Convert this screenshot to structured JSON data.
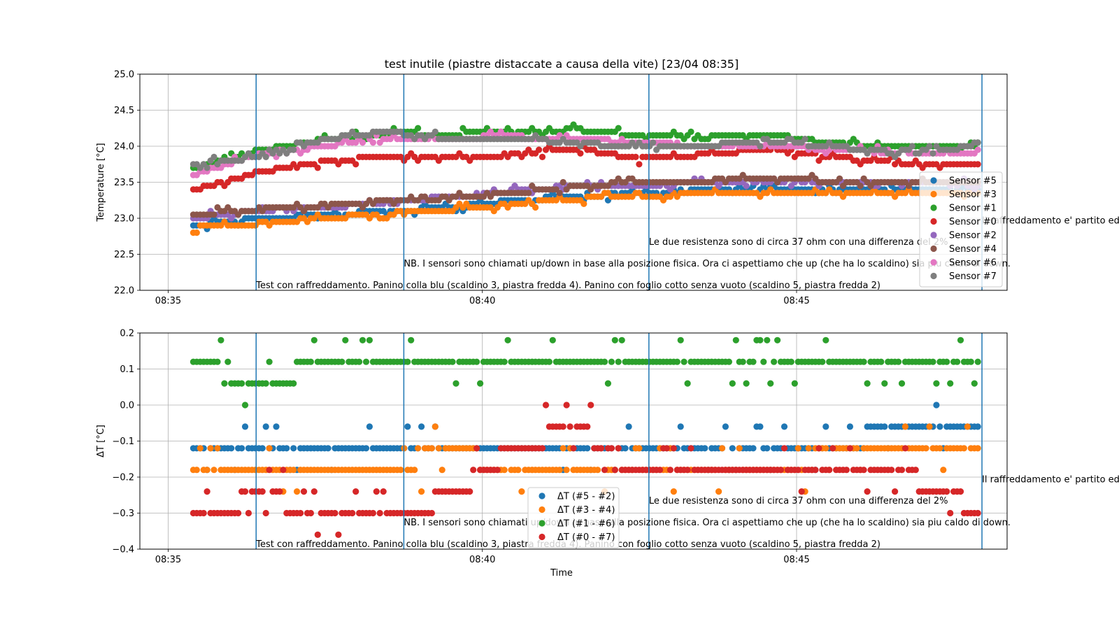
{
  "figure": {
    "title": "test inutile (piastre distaccate a causa della vite) [23/04 08:35]",
    "xlabel": "Time"
  },
  "colors": {
    "Sensor #5": "#1f77b4",
    "Sensor #3": "#ff7f0e",
    "Sensor #1": "#2ca02c",
    "Sensor #0": "#d62728",
    "Sensor #2": "#9467bd",
    "Sensor #4": "#8c564b",
    "Sensor #6": "#e377c2",
    "Sensor #7": "#7f7f7f",
    "vline": "#1f77b4",
    "grid": "#b0b0b0"
  },
  "chart_data": [
    {
      "type": "scatter",
      "ylabel": "Temperature [°C]",
      "ylim": [
        22.0,
        25.0
      ],
      "yticks": [
        "22.0",
        "22.5",
        "23.0",
        "23.5",
        "24.0",
        "24.5",
        "25.0"
      ],
      "xlim_min": [
        -0.5,
        13.3
      ],
      "xticks": [
        {
          "t": 0,
          "label": "08:35"
        },
        {
          "t": 5,
          "label": "08:40"
        },
        {
          "t": 10,
          "label": "08:45"
        }
      ],
      "grid": true,
      "legend": "right, partially outside axes",
      "series": [
        {
          "name": "Sensor #5",
          "t": [
            0.4,
            1.5,
            2.5,
            3.5,
            4.5,
            5.5,
            6.5,
            7.5,
            8.5,
            9.5,
            10.5,
            11.5,
            12.5,
            12.9
          ],
          "values": [
            22.9,
            23.0,
            23.05,
            23.1,
            23.15,
            23.25,
            23.3,
            23.35,
            23.4,
            23.4,
            23.4,
            23.42,
            23.42,
            23.42
          ]
        },
        {
          "name": "Sensor #3",
          "t": [
            0.4,
            1.5,
            2.5,
            3.5,
            4.5,
            5.5,
            6.5,
            7.5,
            8.5,
            9.5,
            10.5,
            11.5,
            12.5,
            12.9
          ],
          "values": [
            22.87,
            22.93,
            23.0,
            23.07,
            23.12,
            23.2,
            23.27,
            23.3,
            23.35,
            23.35,
            23.33,
            23.33,
            23.35,
            23.37
          ]
        },
        {
          "name": "Sensor #1",
          "t": [
            0.4,
            1.5,
            2.5,
            3.5,
            4.5,
            5.5,
            6.5,
            7.5,
            8.5,
            9.5,
            10.5,
            11.5,
            12.5,
            12.9
          ],
          "values": [
            23.7,
            23.95,
            24.1,
            24.18,
            24.17,
            24.2,
            24.23,
            24.15,
            24.12,
            24.15,
            24.05,
            24.0,
            23.98,
            24.05
          ]
        },
        {
          "name": "Sensor #0",
          "t": [
            0.4,
            1.5,
            2.5,
            3.5,
            4.5,
            5.5,
            6.5,
            7.5,
            8.5,
            9.5,
            10.5,
            11.5,
            12.5,
            12.9
          ],
          "values": [
            23.4,
            23.65,
            23.78,
            23.87,
            23.85,
            23.88,
            23.97,
            23.82,
            23.88,
            23.96,
            23.85,
            23.78,
            23.75,
            23.75
          ]
        },
        {
          "name": "Sensor #2",
          "t": [
            0.4,
            1.5,
            2.5,
            3.5,
            4.5,
            5.5,
            6.5,
            7.5,
            8.5,
            9.5,
            10.5,
            11.5,
            12.5,
            12.9
          ],
          "values": [
            23.0,
            23.12,
            23.15,
            23.22,
            23.3,
            23.38,
            23.45,
            23.45,
            23.5,
            23.52,
            23.5,
            23.48,
            23.48,
            23.47
          ]
        },
        {
          "name": "Sensor #4",
          "t": [
            0.4,
            1.5,
            2.5,
            3.5,
            4.5,
            5.5,
            6.5,
            7.5,
            8.5,
            9.5,
            10.5,
            11.5,
            12.5,
            12.9
          ],
          "values": [
            23.05,
            23.13,
            23.18,
            23.25,
            23.28,
            23.35,
            23.45,
            23.5,
            23.52,
            23.55,
            23.52,
            23.5,
            23.5,
            23.5
          ]
        },
        {
          "name": "Sensor #6",
          "t": [
            0.4,
            1.5,
            2.5,
            3.5,
            4.5,
            5.5,
            6.5,
            7.5,
            8.5,
            9.5,
            10.5,
            11.5,
            12.5,
            12.9
          ],
          "values": [
            23.6,
            23.9,
            24.0,
            24.12,
            24.12,
            24.13,
            24.1,
            24.05,
            24.0,
            24.02,
            23.95,
            23.92,
            23.9,
            23.93
          ]
        },
        {
          "name": "Sensor #7",
          "t": [
            0.4,
            1.5,
            2.5,
            3.5,
            4.5,
            5.5,
            6.5,
            7.5,
            8.5,
            9.5,
            10.5,
            11.5,
            12.5,
            12.9
          ],
          "values": [
            23.75,
            23.85,
            24.1,
            24.2,
            24.1,
            24.1,
            24.05,
            23.98,
            24.0,
            24.08,
            24.0,
            23.92,
            23.95,
            24.05
          ]
        }
      ],
      "vlines_t": [
        1.4,
        3.75,
        7.65,
        12.95
      ],
      "annotations": [
        {
          "t": 1.4,
          "y": 22.0,
          "text": "Test con raffreddamento. Panino colla blu (scaldino 3, piastra fredda 4). Panino con foglio cotto senza vuoto (scaldino 5, piastra fredda 2)"
        },
        {
          "t": 3.75,
          "y": 22.3,
          "text": "NB. I sensori sono chiamati up/down in base alla posizione fisica. Ora ci aspettiamo che up (che ha lo scaldino) sia piu caldo di down."
        },
        {
          "t": 7.65,
          "y": 22.6,
          "text": "Le due resistenza sono di circa 37 ohm con una differenza del 2%"
        },
        {
          "t": 12.95,
          "y": 22.9,
          "text": "Il raffreddamento e' partito ed e"
        }
      ]
    },
    {
      "type": "scatter",
      "ylabel": "ΔT [°C]",
      "ylim": [
        -0.4,
        0.2
      ],
      "yticks": [
        "−0.4",
        "−0.3",
        "−0.2",
        "−0.1",
        "0.0",
        "0.1",
        "0.2"
      ],
      "xticks": [
        {
          "t": 0,
          "label": "08:35"
        },
        {
          "t": 5,
          "label": "08:40"
        },
        {
          "t": 10,
          "label": "08:45"
        }
      ],
      "grid": true,
      "legend": "lower center",
      "series": [
        {
          "name": "ΔT (#5 - #2)",
          "t": [
            0.4,
            1.5,
            2.5,
            3.5,
            4.5,
            5.5,
            6.5,
            7.5,
            8.5,
            9.5,
            10.5,
            11.5,
            12.5,
            12.9
          ],
          "values": [
            -0.13,
            -0.12,
            -0.13,
            -0.13,
            -0.12,
            -0.13,
            -0.13,
            -0.13,
            -0.13,
            -0.13,
            -0.13,
            -0.06,
            -0.06,
            -0.06
          ]
        },
        {
          "name": "ΔT (#3 - #4)",
          "t": [
            0.4,
            1.5,
            2.5,
            3.5,
            4.5,
            5.5,
            6.5,
            7.5,
            8.5,
            9.5,
            10.5,
            11.5,
            12.5,
            12.9
          ],
          "values": [
            -0.19,
            -0.18,
            -0.19,
            -0.19,
            -0.12,
            -0.19,
            -0.19,
            -0.19,
            -0.19,
            -0.19,
            -0.13,
            -0.13,
            -0.13,
            -0.13
          ]
        },
        {
          "name": "ΔT (#1 - #6)",
          "t": [
            0.4,
            1.5,
            2.5,
            3.5,
            4.5,
            5.5,
            6.5,
            7.5,
            8.5,
            9.5,
            10.5,
            11.5,
            12.5,
            12.9
          ],
          "values": [
            0.13,
            0.06,
            0.12,
            0.13,
            0.13,
            0.13,
            0.13,
            0.12,
            0.13,
            0.12,
            0.13,
            0.13,
            0.13,
            0.12
          ]
        },
        {
          "name": "ΔT (#0 - #7)",
          "t": [
            0.4,
            1.5,
            2.5,
            3.5,
            4.5,
            5.5,
            6.5,
            7.5,
            8.5,
            9.5,
            10.5,
            11.5,
            12.5,
            12.9
          ],
          "values": [
            -0.31,
            -0.25,
            -0.31,
            -0.32,
            -0.25,
            -0.12,
            -0.06,
            -0.19,
            -0.19,
            -0.19,
            -0.19,
            -0.18,
            -0.25,
            -0.31
          ]
        }
      ],
      "vlines_t": [
        1.4,
        3.75,
        7.65,
        12.95
      ],
      "annotations": [
        {
          "t": 1.4,
          "y": -0.4,
          "text": "Test con raffreddamento. Panino colla blu (scaldino 3, piastra fredda 4). Panino con foglio cotto senza vuoto (scaldino 5, piastra fredda 2)"
        },
        {
          "t": 3.75,
          "y": -0.34,
          "text": "NB. I sensori sono chiamati up/down in base alla posizione fisica. Ora ci aspettiamo che up (che ha lo scaldino) sia piu caldo di down."
        },
        {
          "t": 7.65,
          "y": -0.28,
          "text": "Le due resistenza sono di circa 37 ohm con una differenza del 2%"
        },
        {
          "t": 12.95,
          "y": -0.22,
          "text": "Il raffreddamento e' partito ed e"
        }
      ]
    }
  ]
}
